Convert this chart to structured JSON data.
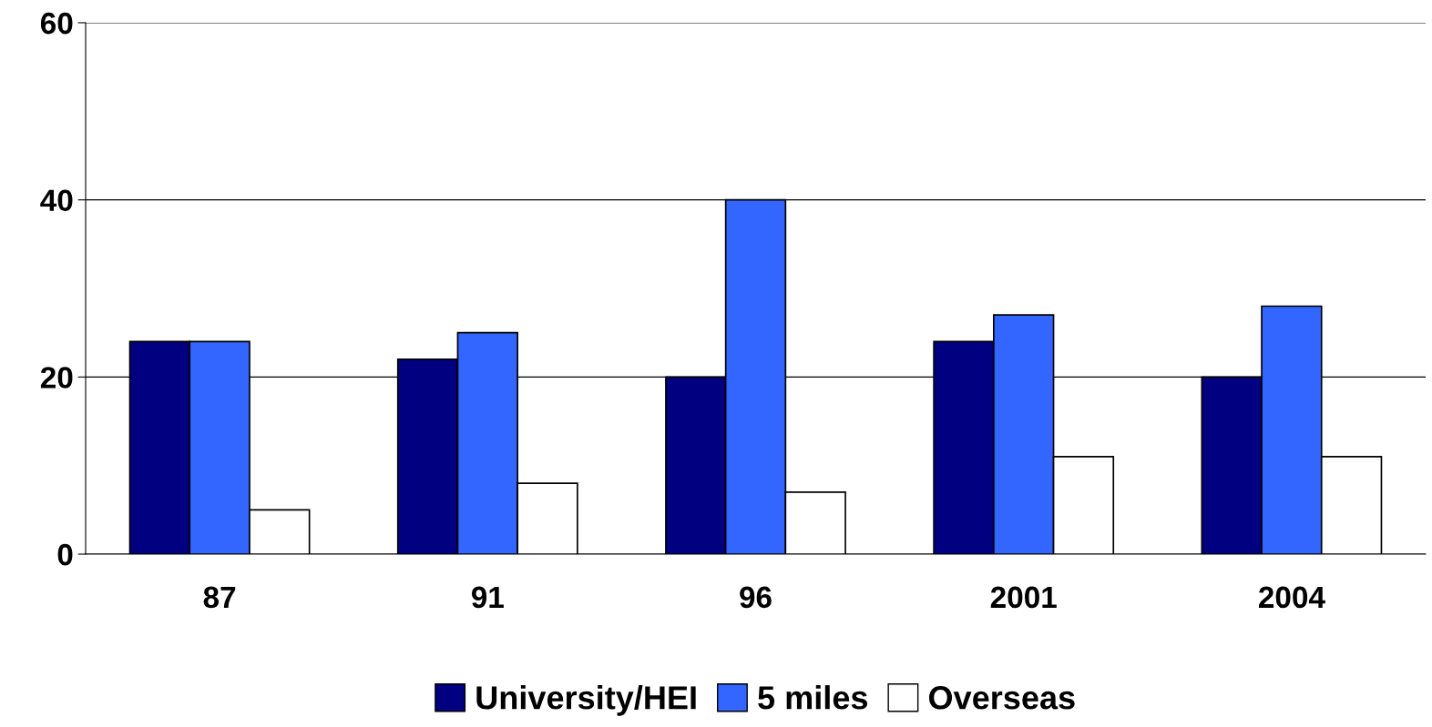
{
  "chart_data": {
    "type": "bar",
    "categories": [
      "87",
      "91",
      "96",
      "2001",
      "2004"
    ],
    "series": [
      {
        "name": "University/HEI",
        "color": "#000080",
        "values": [
          24,
          22,
          20,
          24,
          20
        ]
      },
      {
        "name": "5 miles",
        "color": "#3366ff",
        "values": [
          24,
          25,
          40,
          27,
          28
        ]
      },
      {
        "name": "Overseas",
        "color": "#ffffff",
        "values": [
          5,
          8,
          7,
          11,
          11
        ]
      }
    ],
    "ylim": [
      0,
      60
    ],
    "yticks": [
      0,
      20,
      40,
      60
    ],
    "grid": "y",
    "legend": "bottom"
  }
}
